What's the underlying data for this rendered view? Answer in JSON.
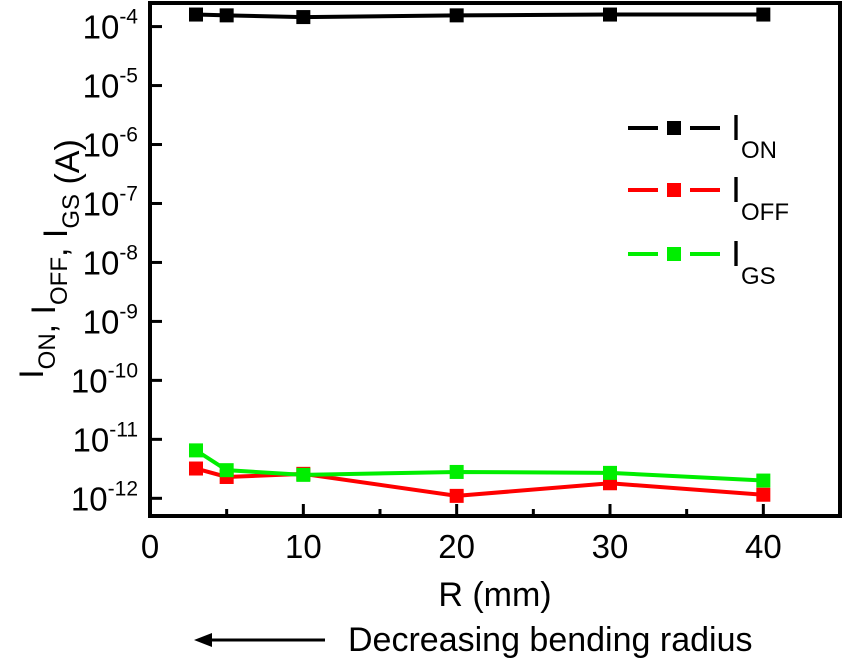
{
  "chart_data": {
    "type": "line",
    "title": "",
    "xlabel": "R (mm)",
    "ylabel": {
      "parts": [
        {
          "text": "I",
          "sub": "ON"
        },
        {
          "text": ", I",
          "sub": "OFF"
        },
        {
          "text": ", I",
          "sub": "GS"
        },
        {
          "text": " (A)",
          "sub": ""
        }
      ]
    },
    "xlim": [
      0,
      45
    ],
    "ylim_exponent": [
      -12.3,
      -3.6
    ],
    "yscale": "log",
    "x_ticks": [
      0,
      10,
      20,
      30,
      40
    ],
    "y_ticks": [
      {
        "value": 1e-12,
        "base": "10",
        "exp": "-12"
      },
      {
        "value": 1e-11,
        "base": "10",
        "exp": "-11"
      },
      {
        "value": 1e-10,
        "base": "10",
        "exp": "-10"
      },
      {
        "value": 1e-09,
        "base": "10",
        "exp": "-9"
      },
      {
        "value": 1e-08,
        "base": "10",
        "exp": "-8"
      },
      {
        "value": 1e-07,
        "base": "10",
        "exp": "-7"
      },
      {
        "value": 1e-06,
        "base": "10",
        "exp": "-6"
      },
      {
        "value": 1e-05,
        "base": "10",
        "exp": "-5"
      },
      {
        "value": 0.0001,
        "base": "10",
        "exp": "-4"
      }
    ],
    "series": [
      {
        "name": "I",
        "name_sub": "ON",
        "color": "#000000",
        "x": [
          3,
          5,
          10,
          20,
          30,
          40
        ],
        "y": [
          0.00016,
          0.000155,
          0.000145,
          0.000155,
          0.00016,
          0.00016
        ]
      },
      {
        "name": "I",
        "name_sub": "OFF",
        "color": "#ff0000",
        "x": [
          3,
          5,
          10,
          20,
          30,
          40
        ],
        "y": [
          3.2e-12,
          2.3e-12,
          2.6e-12,
          1.1e-12,
          1.8e-12,
          1.15e-12
        ]
      },
      {
        "name": "I",
        "name_sub": "GS",
        "color": "#00ee00",
        "x": [
          3,
          5,
          10,
          20,
          30,
          40
        ],
        "y": [
          6.5e-12,
          3e-12,
          2.5e-12,
          2.8e-12,
          2.7e-12,
          2e-12
        ]
      }
    ],
    "legend_position": "right",
    "grid": false,
    "annotation": "Decreasing bending radius"
  }
}
